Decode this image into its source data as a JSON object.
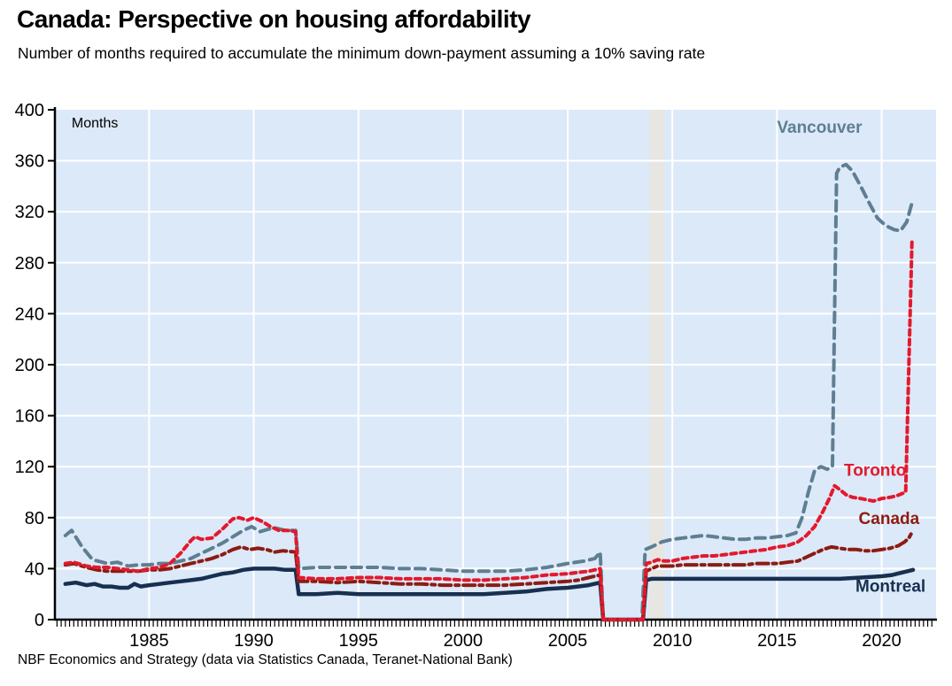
{
  "header": {
    "title": "Canada: Perspective on housing affordability",
    "subtitle": "Number of months required to accumulate the minimum down-payment assuming a 10% saving rate"
  },
  "footer": {
    "source": "NBF Economics and Strategy (data via Statistics Canada, Teranet-National Bank)"
  },
  "chart_data": {
    "type": "line",
    "title": "Canada: Perspective on housing affordability",
    "subtitle": "Number of months required to accumulate the minimum down-payment assuming a 10% saving rate",
    "unit_label": "Months",
    "unit_label_pos": {
      "x": 1981.3,
      "y": 386
    },
    "xlim": [
      1980.5,
      2022.6
    ],
    "ylim": [
      0,
      400
    ],
    "x_ticks": [
      1985,
      1990,
      1995,
      2000,
      2005,
      2010,
      2015,
      2020
    ],
    "y_ticks": [
      0,
      40,
      80,
      120,
      160,
      200,
      240,
      280,
      320,
      360,
      400
    ],
    "x_minor_tick_step": 0.2,
    "grid": true,
    "grid_color": "#ffffff",
    "bg_color": "#dce9f8",
    "axis_color": "#000000",
    "recession_band": {
      "x0": 2008.9,
      "x1": 2009.62,
      "color": "#e8e6e3"
    },
    "series": [
      {
        "name": "Montreal",
        "color": "#173050",
        "dash": null,
        "width": 4.5,
        "label": {
          "x": 2018.75,
          "y": 22
        },
        "points": [
          [
            1981.0,
            28
          ],
          [
            1981.5,
            29
          ],
          [
            1982.0,
            27
          ],
          [
            1982.4,
            28
          ],
          [
            1982.8,
            26
          ],
          [
            1983.2,
            26
          ],
          [
            1983.6,
            25
          ],
          [
            1984.0,
            25
          ],
          [
            1984.3,
            28
          ],
          [
            1984.6,
            26
          ],
          [
            1985.0,
            27
          ],
          [
            1985.5,
            28
          ],
          [
            1986.0,
            29
          ],
          [
            1986.5,
            30
          ],
          [
            1987.0,
            31
          ],
          [
            1987.5,
            32
          ],
          [
            1988.0,
            34
          ],
          [
            1988.5,
            36
          ],
          [
            1989.0,
            37
          ],
          [
            1989.5,
            39
          ],
          [
            1990.0,
            40
          ],
          [
            1990.5,
            40
          ],
          [
            1991.0,
            40
          ],
          [
            1991.5,
            39
          ],
          [
            1992.0,
            39
          ],
          [
            1992.15,
            20
          ],
          [
            1993,
            20
          ],
          [
            1994,
            21
          ],
          [
            1995,
            20
          ],
          [
            1996,
            20
          ],
          [
            1997,
            20
          ],
          [
            1998,
            20
          ],
          [
            1999,
            20
          ],
          [
            2000,
            20
          ],
          [
            2001,
            20
          ],
          [
            2002,
            21
          ],
          [
            2003,
            22
          ],
          [
            2004,
            24
          ],
          [
            2005,
            25
          ],
          [
            2005.5,
            26
          ],
          [
            2006.0,
            27
          ],
          [
            2006.55,
            29
          ],
          [
            2006.7,
            0
          ],
          [
            2007,
            0
          ],
          [
            2008,
            0
          ],
          [
            2008.6,
            0
          ],
          [
            2008.75,
            31
          ],
          [
            2009.0,
            32
          ],
          [
            2010,
            32
          ],
          [
            2011,
            32
          ],
          [
            2012,
            32
          ],
          [
            2013,
            32
          ],
          [
            2014,
            32
          ],
          [
            2015,
            32
          ],
          [
            2016,
            32
          ],
          [
            2017,
            32
          ],
          [
            2018,
            32
          ],
          [
            2019,
            33
          ],
          [
            2020,
            34
          ],
          [
            2020.5,
            35
          ],
          [
            2021.0,
            37
          ],
          [
            2021.5,
            39
          ]
        ]
      },
      {
        "name": "Vancouver",
        "color": "#5e7f91",
        "dash": "11 7",
        "width": 4,
        "label": {
          "x": 2015.0,
          "y": 382
        },
        "points": [
          [
            1981.0,
            66
          ],
          [
            1981.3,
            70
          ],
          [
            1981.8,
            57
          ],
          [
            1982.3,
            47
          ],
          [
            1983.0,
            44
          ],
          [
            1983.5,
            45
          ],
          [
            1984.0,
            42
          ],
          [
            1984.5,
            43
          ],
          [
            1985.0,
            43
          ],
          [
            1985.5,
            44
          ],
          [
            1986.0,
            44
          ],
          [
            1986.5,
            46
          ],
          [
            1987.0,
            48
          ],
          [
            1987.5,
            52
          ],
          [
            1988.0,
            56
          ],
          [
            1988.5,
            60
          ],
          [
            1989.0,
            65
          ],
          [
            1989.5,
            70
          ],
          [
            1989.9,
            73
          ],
          [
            1990.3,
            69
          ],
          [
            1990.7,
            71
          ],
          [
            1991.0,
            72
          ],
          [
            1991.5,
            70
          ],
          [
            1992.0,
            70
          ],
          [
            1992.15,
            40
          ],
          [
            1993,
            41
          ],
          [
            1994,
            41
          ],
          [
            1995,
            41
          ],
          [
            1996,
            41
          ],
          [
            1997,
            40
          ],
          [
            1998,
            40
          ],
          [
            1999,
            39
          ],
          [
            2000,
            38
          ],
          [
            2001,
            38
          ],
          [
            2002,
            38
          ],
          [
            2003,
            39
          ],
          [
            2004,
            41
          ],
          [
            2005,
            44
          ],
          [
            2005.8,
            46
          ],
          [
            2006.3,
            48
          ],
          [
            2006.55,
            53
          ],
          [
            2006.7,
            0
          ],
          [
            2007,
            0
          ],
          [
            2008,
            0
          ],
          [
            2008.55,
            0
          ],
          [
            2008.7,
            55
          ],
          [
            2009.0,
            57
          ],
          [
            2009.5,
            61
          ],
          [
            2010.0,
            63
          ],
          [
            2010.5,
            64
          ],
          [
            2011.0,
            65
          ],
          [
            2011.5,
            66
          ],
          [
            2012.0,
            65
          ],
          [
            2012.5,
            64
          ],
          [
            2013.0,
            63
          ],
          [
            2013.5,
            63
          ],
          [
            2014.0,
            64
          ],
          [
            2014.5,
            64
          ],
          [
            2015.0,
            65
          ],
          [
            2015.5,
            66
          ],
          [
            2015.9,
            68
          ],
          [
            2016.2,
            80
          ],
          [
            2016.5,
            100
          ],
          [
            2016.8,
            117
          ],
          [
            2017.1,
            120
          ],
          [
            2017.4,
            118
          ],
          [
            2017.65,
            120
          ],
          [
            2017.75,
            240
          ],
          [
            2017.85,
            350
          ],
          [
            2018.0,
            355
          ],
          [
            2018.3,
            357
          ],
          [
            2018.6,
            352
          ],
          [
            2019.0,
            340
          ],
          [
            2019.4,
            327
          ],
          [
            2019.8,
            315
          ],
          [
            2020.2,
            309
          ],
          [
            2020.6,
            306
          ],
          [
            2020.9,
            305
          ],
          [
            2021.2,
            312
          ],
          [
            2021.5,
            330
          ]
        ]
      },
      {
        "name": "Canada",
        "color": "#8c1c13",
        "dash": "13 5 4 5",
        "width": 4,
        "label": {
          "x": 2018.9,
          "y": 75
        },
        "points": [
          [
            1981.0,
            43
          ],
          [
            1981.4,
            44
          ],
          [
            1982.0,
            41
          ],
          [
            1982.5,
            39
          ],
          [
            1983.0,
            38
          ],
          [
            1983.5,
            38
          ],
          [
            1984.0,
            38
          ],
          [
            1984.5,
            38
          ],
          [
            1985.0,
            39
          ],
          [
            1985.5,
            39
          ],
          [
            1986.0,
            40
          ],
          [
            1986.5,
            42
          ],
          [
            1987.0,
            44
          ],
          [
            1987.5,
            46
          ],
          [
            1988.0,
            48
          ],
          [
            1988.5,
            51
          ],
          [
            1989.0,
            55
          ],
          [
            1989.4,
            57
          ],
          [
            1989.8,
            55
          ],
          [
            1990.2,
            56
          ],
          [
            1990.6,
            55
          ],
          [
            1991.0,
            53
          ],
          [
            1991.4,
            54
          ],
          [
            1992.0,
            53
          ],
          [
            1992.15,
            30
          ],
          [
            1993,
            30
          ],
          [
            1994,
            29
          ],
          [
            1995,
            30
          ],
          [
            1996,
            29
          ],
          [
            1997,
            28
          ],
          [
            1998,
            28
          ],
          [
            1999,
            27
          ],
          [
            2000,
            27
          ],
          [
            2001,
            27
          ],
          [
            2002,
            27
          ],
          [
            2003,
            28
          ],
          [
            2004,
            29
          ],
          [
            2005,
            30
          ],
          [
            2005.5,
            31
          ],
          [
            2006.0,
            33
          ],
          [
            2006.55,
            35
          ],
          [
            2006.7,
            0
          ],
          [
            2007,
            0
          ],
          [
            2008,
            0
          ],
          [
            2008.6,
            0
          ],
          [
            2008.75,
            38
          ],
          [
            2009.0,
            40
          ],
          [
            2009.3,
            42
          ],
          [
            2010.0,
            42
          ],
          [
            2010.5,
            43
          ],
          [
            2011.0,
            43
          ],
          [
            2011.5,
            43
          ],
          [
            2012.0,
            43
          ],
          [
            2012.5,
            43
          ],
          [
            2013.0,
            43
          ],
          [
            2013.5,
            43
          ],
          [
            2014.0,
            44
          ],
          [
            2014.5,
            44
          ],
          [
            2015.0,
            44
          ],
          [
            2015.5,
            45
          ],
          [
            2016.0,
            46
          ],
          [
            2016.4,
            49
          ],
          [
            2016.8,
            52
          ],
          [
            2017.2,
            55
          ],
          [
            2017.6,
            57
          ],
          [
            2018.0,
            56
          ],
          [
            2018.4,
            55
          ],
          [
            2018.8,
            55
          ],
          [
            2019.2,
            54
          ],
          [
            2019.6,
            54
          ],
          [
            2020.0,
            55
          ],
          [
            2020.4,
            56
          ],
          [
            2020.8,
            58
          ],
          [
            2021.1,
            61
          ],
          [
            2021.3,
            64
          ],
          [
            2021.5,
            70
          ]
        ]
      },
      {
        "name": "Toronto",
        "color": "#e3192d",
        "dash": "6 5",
        "width": 4,
        "label": {
          "x": 2018.2,
          "y": 113
        },
        "points": [
          [
            1981.0,
            44
          ],
          [
            1981.4,
            45
          ],
          [
            1982.0,
            42
          ],
          [
            1982.5,
            41
          ],
          [
            1983.0,
            41
          ],
          [
            1983.5,
            40
          ],
          [
            1984.0,
            39
          ],
          [
            1984.5,
            38
          ],
          [
            1985.0,
            40
          ],
          [
            1985.5,
            41
          ],
          [
            1986.0,
            44
          ],
          [
            1986.5,
            52
          ],
          [
            1987.0,
            62
          ],
          [
            1987.2,
            65
          ],
          [
            1987.5,
            63
          ],
          [
            1988.0,
            64
          ],
          [
            1988.5,
            71
          ],
          [
            1989.0,
            79
          ],
          [
            1989.3,
            80
          ],
          [
            1989.7,
            78
          ],
          [
            1990.0,
            80
          ],
          [
            1990.4,
            77
          ],
          [
            1990.8,
            73
          ],
          [
            1991.2,
            70
          ],
          [
            1991.6,
            70
          ],
          [
            1992.0,
            69
          ],
          [
            1992.15,
            33
          ],
          [
            1993,
            32
          ],
          [
            1994,
            32
          ],
          [
            1995,
            33
          ],
          [
            1996,
            33
          ],
          [
            1997,
            32
          ],
          [
            1998,
            32
          ],
          [
            1999,
            32
          ],
          [
            2000,
            31
          ],
          [
            2001,
            31
          ],
          [
            2002,
            32
          ],
          [
            2003,
            33
          ],
          [
            2004,
            35
          ],
          [
            2005,
            36
          ],
          [
            2005.5,
            37
          ],
          [
            2006.0,
            38
          ],
          [
            2006.55,
            40
          ],
          [
            2006.7,
            0
          ],
          [
            2007,
            0
          ],
          [
            2008,
            0
          ],
          [
            2008.6,
            0
          ],
          [
            2008.75,
            44
          ],
          [
            2009.0,
            45
          ],
          [
            2009.3,
            47
          ],
          [
            2009.6,
            46
          ],
          [
            2010.0,
            46
          ],
          [
            2010.5,
            48
          ],
          [
            2011.0,
            49
          ],
          [
            2011.5,
            50
          ],
          [
            2012.0,
            50
          ],
          [
            2012.5,
            51
          ],
          [
            2013.0,
            52
          ],
          [
            2013.5,
            53
          ],
          [
            2014.0,
            54
          ],
          [
            2014.5,
            55
          ],
          [
            2015.0,
            57
          ],
          [
            2015.5,
            58
          ],
          [
            2016.0,
            61
          ],
          [
            2016.4,
            66
          ],
          [
            2016.8,
            73
          ],
          [
            2017.2,
            85
          ],
          [
            2017.5,
            95
          ],
          [
            2017.75,
            105
          ],
          [
            2018.0,
            102
          ],
          [
            2018.3,
            98
          ],
          [
            2018.6,
            96
          ],
          [
            2019.0,
            95
          ],
          [
            2019.3,
            94
          ],
          [
            2019.6,
            93
          ],
          [
            2020.0,
            95
          ],
          [
            2020.4,
            96
          ],
          [
            2020.7,
            97
          ],
          [
            2021.0,
            99
          ],
          [
            2021.15,
            100
          ],
          [
            2021.3,
            200
          ],
          [
            2021.45,
            297
          ]
        ]
      }
    ]
  }
}
